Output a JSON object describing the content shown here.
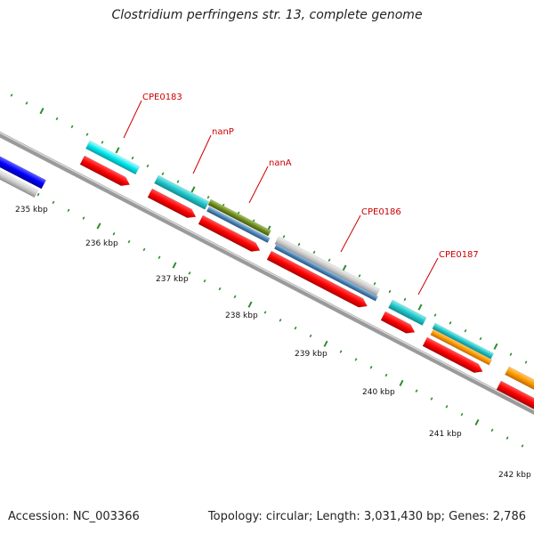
{
  "title": "Clostridium perfringens str. 13, complete genome",
  "footer": {
    "accession": "Accession: NC_003366",
    "summary": "Topology: circular; Length: 3,031,430 bp; Genes: 2,786"
  },
  "colors": {
    "backbone": "#8a8a8a",
    "tick": "#2e8b2e",
    "label": "#cc0000",
    "red": "#ff0000",
    "cyan": "#00e0e6",
    "teal": "#1fc4c8",
    "gray": "#c8c8c8",
    "steelblue": "#4a86b8",
    "olive": "#6e8b1e",
    "blue": "#0000ff",
    "orange": "#ff9900"
  },
  "kbp_labels": [
    "235 kbp",
    "236 kbp",
    "237 kbp",
    "238 kbp",
    "239 kbp",
    "240 kbp",
    "241 kbp",
    "242 kbp"
  ],
  "gene_labels": [
    "CPE0183",
    "nanP",
    "nanA",
    "CPE0186",
    "CPE0187"
  ]
}
